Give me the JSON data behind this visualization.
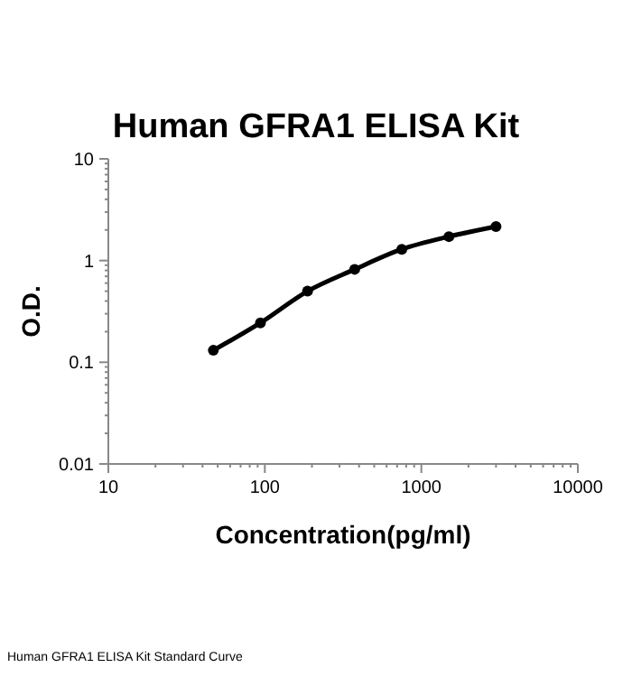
{
  "chart_data": {
    "type": "line",
    "title": "Human GFRA1 ELISA Kit",
    "xlabel": "Concentration(pg/ml)",
    "ylabel": "O.D.",
    "x": [
      46.875,
      93.75,
      187.5,
      375,
      750,
      1500,
      3000
    ],
    "series": [
      {
        "color": "#000000",
        "values": [
          0.131,
          0.244,
          0.5,
          0.82,
          1.29,
          1.72,
          2.16
        ]
      }
    ],
    "log": "xy",
    "xlim": [
      10,
      10000
    ],
    "ylim": [
      0.01,
      10
    ],
    "xticks": [
      10,
      100,
      1000,
      10000
    ],
    "yticks": [
      0.01,
      0.1,
      1,
      10
    ],
    "marker": "circle",
    "line_style": "solid",
    "annotations": [
      "Human GFRA1 ELISA Kit Standard Curve"
    ]
  }
}
